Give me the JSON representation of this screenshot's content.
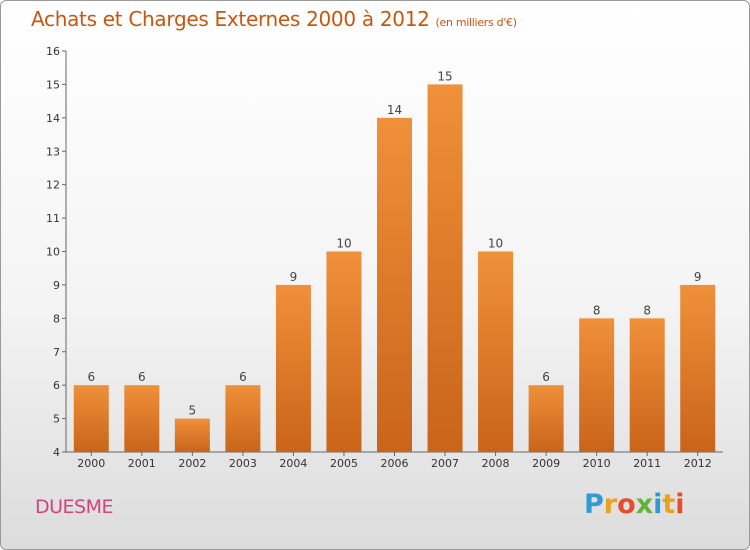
{
  "chart_data": {
    "type": "bar",
    "title": "Achats et Charges Externes 2000 à 2012",
    "subtitle": "(en milliers d'€)",
    "categories": [
      "2000",
      "2001",
      "2002",
      "2003",
      "2004",
      "2005",
      "2006",
      "2007",
      "2008",
      "2009",
      "2010",
      "2011",
      "2012"
    ],
    "values": [
      6,
      6,
      5,
      6,
      9,
      10,
      14,
      15,
      10,
      6,
      8,
      8,
      9
    ],
    "ylim": [
      4,
      16
    ],
    "yticks": [
      4,
      5,
      6,
      7,
      8,
      9,
      10,
      11,
      12,
      13,
      14,
      15,
      16
    ],
    "grid": false,
    "bar_color": "#f0903a",
    "bar_color_dark": "#c96419"
  },
  "footer": {
    "place_name": "DUESME",
    "logo_letters": [
      {
        "ch": "P",
        "color": "#2f9ad6"
      },
      {
        "ch": "r",
        "color": "#e8a21c"
      },
      {
        "ch": "o",
        "color": "#e84c2b"
      },
      {
        "ch": "x",
        "color": "#62b23a"
      },
      {
        "ch": "i",
        "color": "#2f9ad6"
      },
      {
        "ch": "t",
        "color": "#e8a21c"
      },
      {
        "ch": "i",
        "color": "#e84c2b"
      }
    ]
  }
}
